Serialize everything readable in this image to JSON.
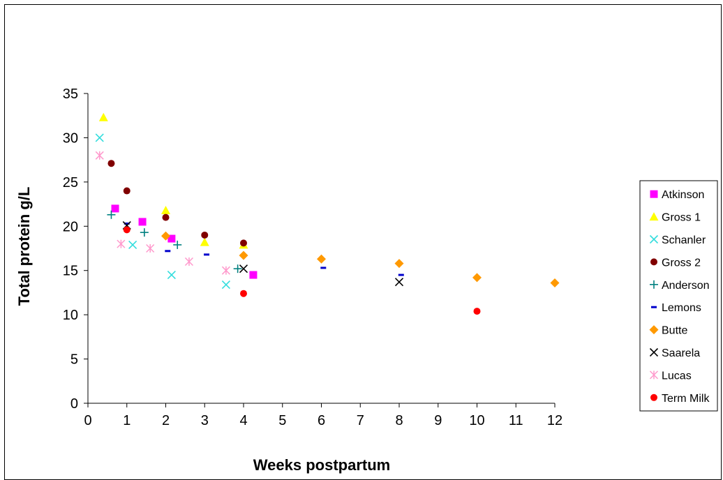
{
  "chart_data": {
    "type": "scatter",
    "xlabel": "Weeks postpartum",
    "ylabel": "Total protein g/L",
    "xlim": [
      0,
      12
    ],
    "ylim": [
      0,
      35
    ],
    "xticks": [
      0,
      1,
      2,
      3,
      4,
      5,
      6,
      7,
      8,
      9,
      10,
      11,
      12
    ],
    "yticks": [
      0,
      5,
      10,
      15,
      20,
      25,
      30,
      35
    ],
    "grid": false,
    "legend_position": "right",
    "series": [
      {
        "name": "Atkinson",
        "marker": "square",
        "color": "#ff00ff",
        "points": [
          [
            0.7,
            22.0
          ],
          [
            1.4,
            20.5
          ],
          [
            2.15,
            18.6
          ],
          [
            4.25,
            14.5
          ]
        ]
      },
      {
        "name": "Gross 1",
        "marker": "triangle",
        "color": "#ffff00",
        "points": [
          [
            0.4,
            32.3
          ],
          [
            2.0,
            21.8
          ],
          [
            3.0,
            18.2
          ],
          [
            4.0,
            17.9
          ]
        ]
      },
      {
        "name": "Schanler",
        "marker": "x",
        "color": "#33dddd",
        "points": [
          [
            0.3,
            30.0
          ],
          [
            1.15,
            17.9
          ],
          [
            2.15,
            14.5
          ],
          [
            3.55,
            13.4
          ]
        ]
      },
      {
        "name": "Gross 2",
        "marker": "circle",
        "color": "#800000",
        "points": [
          [
            0.6,
            27.1
          ],
          [
            1.0,
            24.0
          ],
          [
            2.0,
            21.0
          ],
          [
            3.0,
            19.0
          ],
          [
            4.0,
            18.1
          ]
        ]
      },
      {
        "name": "Anderson",
        "marker": "plus",
        "color": "#008080",
        "points": [
          [
            0.6,
            21.3
          ],
          [
            1.45,
            19.3
          ],
          [
            2.3,
            17.9
          ],
          [
            3.85,
            15.2
          ]
        ]
      },
      {
        "name": "Lemons",
        "marker": "dash",
        "color": "#0000cc",
        "points": [
          [
            1.0,
            20.3
          ],
          [
            2.05,
            17.2
          ],
          [
            3.05,
            16.8
          ],
          [
            6.05,
            15.3
          ],
          [
            8.05,
            14.5
          ]
        ]
      },
      {
        "name": "Butte",
        "marker": "diamond",
        "color": "#ff9900",
        "points": [
          [
            2.0,
            18.9
          ],
          [
            4.0,
            16.7
          ],
          [
            6.0,
            16.3
          ],
          [
            8.0,
            15.8
          ],
          [
            10.0,
            14.2
          ],
          [
            12.0,
            13.6
          ]
        ]
      },
      {
        "name": "Saarela",
        "marker": "x",
        "color": "#000000",
        "points": [
          [
            1.0,
            20.1
          ],
          [
            4.0,
            15.2
          ],
          [
            8.0,
            13.7
          ]
        ]
      },
      {
        "name": "Lucas",
        "marker": "asterisk",
        "color": "#ff99cc",
        "points": [
          [
            0.3,
            28.0
          ],
          [
            0.85,
            18.0
          ],
          [
            1.6,
            17.5
          ],
          [
            2.6,
            16.0
          ],
          [
            3.55,
            15.0
          ]
        ]
      },
      {
        "name": "Term Milk",
        "marker": "circle",
        "color": "#ff0000",
        "points": [
          [
            1.0,
            19.6
          ],
          [
            4.0,
            12.4
          ],
          [
            10.0,
            10.4
          ]
        ]
      }
    ]
  }
}
